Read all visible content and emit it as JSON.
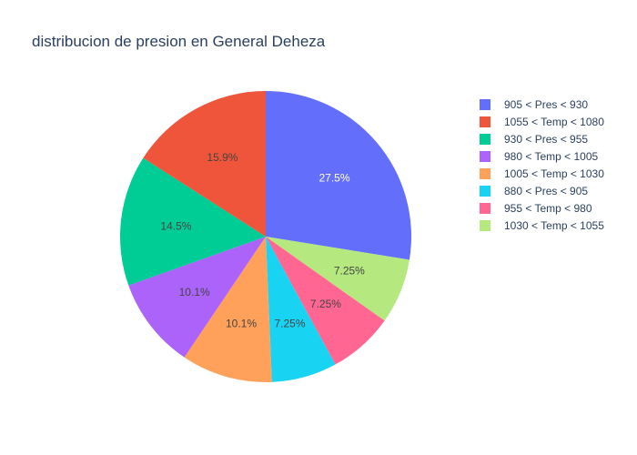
{
  "chart_data": {
    "type": "pie",
    "title": "distribucion de presion en General Deheza",
    "direction": "clockwise",
    "start_angle_deg": 90,
    "slices": [
      {
        "label": "905 < Pres < 930",
        "value": 27.5,
        "display": "27.5%",
        "color": "#636efa",
        "text_color": "#ffffff"
      },
      {
        "label": "1030 < Temp < 1055",
        "value": 7.25,
        "display": "7.25%",
        "color": "#b6e880",
        "text_color": "#444444"
      },
      {
        "label": "955 < Temp < 980",
        "value": 7.25,
        "display": "7.25%",
        "color": "#ff6692",
        "text_color": "#444444"
      },
      {
        "label": "880 < Pres < 905",
        "value": 7.25,
        "display": "7.25%",
        "color": "#19d3f3",
        "text_color": "#444444"
      },
      {
        "label": "1005 < Temp < 1030",
        "value": 10.1,
        "display": "10.1%",
        "color": "#ffa15a",
        "text_color": "#444444"
      },
      {
        "label": "980 < Temp < 1005",
        "value": 10.1,
        "display": "10.1%",
        "color": "#ab63fa",
        "text_color": "#444444"
      },
      {
        "label": "930 < Pres < 955",
        "value": 14.5,
        "display": "14.5%",
        "color": "#00cc96",
        "text_color": "#444444"
      },
      {
        "label": "1055 < Temp < 1080",
        "value": 15.9,
        "display": "15.9%",
        "color": "#ef553b",
        "text_color": "#444444"
      }
    ],
    "legend": {
      "placement": "top-right",
      "order": [
        "905 < Pres < 930",
        "1055 < Temp < 1080",
        "930 < Pres < 955",
        "980 < Temp < 1005",
        "1005 < Temp < 1030",
        "880 < Pres < 905",
        "955 < Temp < 980",
        "1030 < Temp < 1055"
      ]
    }
  }
}
